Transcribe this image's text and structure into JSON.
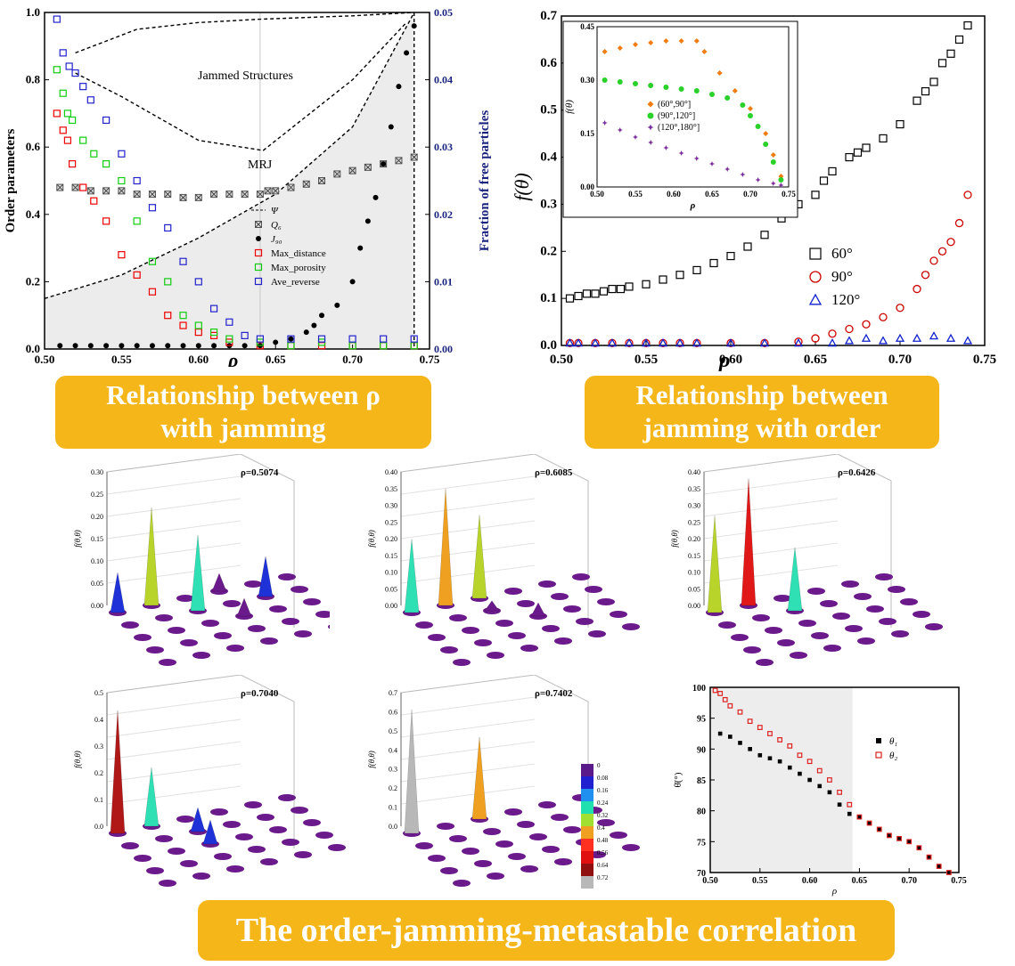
{
  "banners": {
    "top_left_line1": "Relationship  between ρ",
    "top_left_line2": "with jamming",
    "top_right_line1": "Relationship  between",
    "top_right_line2": "jamming with order",
    "bottom": "The order-jamming-metastable correlation"
  },
  "chart_data": [
    {
      "id": "order-parameters",
      "type": "scatter",
      "xlabel": "ρ",
      "ylabel": "Order parameters",
      "y2label": "Fraction of free particles",
      "xlim": [
        0.5,
        0.75
      ],
      "ylim": [
        0,
        1.0
      ],
      "y2lim": [
        0,
        0.05
      ],
      "xticks": [
        "0.50",
        "0.55",
        "0.60",
        "0.65",
        "0.70",
        "0.75"
      ],
      "yticks": [
        "0.0",
        "0.2",
        "0.4",
        "0.6",
        "0.8",
        "1.0"
      ],
      "y2ticks": [
        "0.00",
        "0.01",
        "0.02",
        "0.03",
        "0.04",
        "0.05"
      ],
      "annotations": [
        "Jammed Structures",
        "MRJ"
      ],
      "mrj_x": 0.64,
      "legend": [
        "Ψ",
        "Q₆",
        "J₉₀",
        "Max_distance",
        "Max_porosity",
        "Ave_reverse"
      ],
      "psi_lower": {
        "x": [
          0.5,
          0.55,
          0.6,
          0.65,
          0.7,
          0.74
        ],
        "y": [
          0.15,
          0.22,
          0.33,
          0.46,
          0.66,
          1.0
        ]
      },
      "psi_upper": {
        "x": [
          0.52,
          0.56,
          0.6,
          0.64,
          0.7,
          0.74
        ],
        "y": [
          0.88,
          0.95,
          0.97,
          0.98,
          0.99,
          1.0
        ]
      },
      "psi_inner": {
        "x": [
          0.52,
          0.55,
          0.6,
          0.642,
          0.7,
          0.735
        ],
        "y": [
          0.82,
          0.75,
          0.62,
          0.59,
          0.8,
          0.97
        ]
      },
      "series": [
        {
          "name": "Q₆",
          "axis": "left",
          "x": [
            0.51,
            0.52,
            0.53,
            0.54,
            0.55,
            0.56,
            0.57,
            0.58,
            0.59,
            0.6,
            0.61,
            0.62,
            0.63,
            0.64,
            0.645,
            0.65,
            0.66,
            0.67,
            0.68,
            0.69,
            0.7,
            0.71,
            0.72,
            0.73,
            0.74
          ],
          "y": [
            0.48,
            0.48,
            0.47,
            0.47,
            0.47,
            0.46,
            0.46,
            0.46,
            0.45,
            0.45,
            0.46,
            0.46,
            0.46,
            0.46,
            0.47,
            0.47,
            0.48,
            0.49,
            0.5,
            0.52,
            0.53,
            0.54,
            0.55,
            0.56,
            0.57
          ]
        },
        {
          "name": "J₉₀",
          "axis": "left",
          "x": [
            0.51,
            0.52,
            0.53,
            0.54,
            0.55,
            0.56,
            0.57,
            0.58,
            0.59,
            0.6,
            0.61,
            0.62,
            0.63,
            0.64,
            0.65,
            0.66,
            0.67,
            0.675,
            0.68,
            0.69,
            0.7,
            0.705,
            0.71,
            0.715,
            0.72,
            0.725,
            0.73,
            0.735,
            0.74
          ],
          "y": [
            0.01,
            0.01,
            0.01,
            0.01,
            0.01,
            0.01,
            0.01,
            0.01,
            0.01,
            0.01,
            0.01,
            0.01,
            0.01,
            0.01,
            0.02,
            0.03,
            0.05,
            0.07,
            0.1,
            0.13,
            0.2,
            0.3,
            0.38,
            0.45,
            0.55,
            0.66,
            0.78,
            0.88,
            0.96
          ]
        },
        {
          "name": "Max_distance",
          "axis": "left",
          "x": [
            0.508,
            0.512,
            0.515,
            0.518,
            0.525,
            0.532,
            0.54,
            0.55,
            0.56,
            0.57,
            0.58,
            0.59,
            0.6,
            0.61,
            0.62,
            0.64,
            0.66,
            0.68,
            0.7,
            0.72,
            0.74
          ],
          "y": [
            0.7,
            0.65,
            0.62,
            0.55,
            0.48,
            0.44,
            0.38,
            0.28,
            0.22,
            0.17,
            0.1,
            0.07,
            0.05,
            0.04,
            0.02,
            0.01,
            0.01,
            0.01,
            0.01,
            0.01,
            0.01
          ]
        },
        {
          "name": "Max_porosity",
          "axis": "left",
          "x": [
            0.508,
            0.512,
            0.515,
            0.518,
            0.525,
            0.532,
            0.54,
            0.55,
            0.56,
            0.57,
            0.58,
            0.59,
            0.6,
            0.61,
            0.62,
            0.64,
            0.66,
            0.68,
            0.7,
            0.72,
            0.74
          ],
          "y": [
            0.83,
            0.76,
            0.7,
            0.68,
            0.62,
            0.58,
            0.55,
            0.5,
            0.38,
            0.26,
            0.2,
            0.1,
            0.07,
            0.05,
            0.03,
            0.02,
            0.01,
            0.02,
            0.01,
            0.01,
            0.01
          ]
        },
        {
          "name": "Ave_reverse",
          "axis": "right",
          "x": [
            0.508,
            0.512,
            0.516,
            0.52,
            0.525,
            0.53,
            0.54,
            0.55,
            0.56,
            0.57,
            0.58,
            0.59,
            0.6,
            0.61,
            0.62,
            0.63,
            0.64,
            0.66,
            0.68,
            0.7,
            0.72,
            0.74
          ],
          "y": [
            0.049,
            0.044,
            0.042,
            0.041,
            0.039,
            0.037,
            0.034,
            0.029,
            0.025,
            0.021,
            0.018,
            0.013,
            0.01,
            0.006,
            0.004,
            0.002,
            0.0015,
            0.0015,
            0.0015,
            0.0015,
            0.0015,
            0.0015
          ]
        }
      ]
    },
    {
      "id": "f-theta",
      "type": "scatter",
      "xlabel": "ρ",
      "ylabel": "f(θ)",
      "xlim": [
        0.5,
        0.75
      ],
      "ylim": [
        0,
        0.7
      ],
      "xticks": [
        "0.50",
        "0.55",
        "0.60",
        "0.65",
        "0.70",
        "0.75"
      ],
      "yticks": [
        "0.0",
        "0.1",
        "0.2",
        "0.3",
        "0.4",
        "0.5",
        "0.6",
        "0.7"
      ],
      "series": [
        {
          "name": "60°",
          "x": [
            0.505,
            0.51,
            0.515,
            0.52,
            0.525,
            0.53,
            0.535,
            0.54,
            0.55,
            0.56,
            0.57,
            0.58,
            0.59,
            0.6,
            0.61,
            0.62,
            0.63,
            0.64,
            0.65,
            0.655,
            0.66,
            0.67,
            0.675,
            0.68,
            0.69,
            0.7,
            0.71,
            0.715,
            0.72,
            0.725,
            0.73,
            0.735,
            0.74
          ],
          "y": [
            0.1,
            0.105,
            0.11,
            0.11,
            0.115,
            0.12,
            0.12,
            0.125,
            0.13,
            0.14,
            0.15,
            0.16,
            0.175,
            0.19,
            0.21,
            0.235,
            0.27,
            0.3,
            0.32,
            0.35,
            0.37,
            0.4,
            0.41,
            0.42,
            0.44,
            0.47,
            0.52,
            0.54,
            0.56,
            0.6,
            0.62,
            0.65,
            0.68
          ]
        },
        {
          "name": "90°",
          "x": [
            0.505,
            0.51,
            0.52,
            0.53,
            0.54,
            0.55,
            0.56,
            0.57,
            0.58,
            0.6,
            0.62,
            0.64,
            0.65,
            0.66,
            0.67,
            0.68,
            0.69,
            0.7,
            0.71,
            0.715,
            0.72,
            0.725,
            0.73,
            0.735,
            0.74
          ],
          "y": [
            0.005,
            0.005,
            0.005,
            0.005,
            0.005,
            0.005,
            0.005,
            0.005,
            0.005,
            0.005,
            0.005,
            0.008,
            0.015,
            0.025,
            0.035,
            0.045,
            0.06,
            0.08,
            0.12,
            0.15,
            0.18,
            0.2,
            0.22,
            0.26,
            0.32
          ]
        },
        {
          "name": "120°",
          "x": [
            0.505,
            0.51,
            0.52,
            0.53,
            0.54,
            0.55,
            0.56,
            0.57,
            0.58,
            0.6,
            0.62,
            0.64,
            0.66,
            0.67,
            0.68,
            0.69,
            0.7,
            0.71,
            0.72,
            0.73,
            0.74
          ],
          "y": [
            0.005,
            0.005,
            0.005,
            0.005,
            0.005,
            0.005,
            0.005,
            0.005,
            0.005,
            0.005,
            0.005,
            0.005,
            0.005,
            0.01,
            0.015,
            0.01,
            0.015,
            0.015,
            0.02,
            0.015,
            0.01
          ]
        }
      ],
      "inset": {
        "xlabel": "ρ",
        "ylabel": "f(θ)",
        "xlim": [
          0.5,
          0.75
        ],
        "ylim": [
          0,
          0.45
        ],
        "xticks": [
          "0.50",
          "0.55",
          "0.60",
          "0.65",
          "0.70",
          "0.75"
        ],
        "yticks": [
          "0.00",
          "0.15",
          "0.30",
          "0.45"
        ],
        "series": [
          {
            "name": "(60°,90°]",
            "x": [
              0.51,
              0.53,
              0.55,
              0.57,
              0.59,
              0.61,
              0.63,
              0.64,
              0.66,
              0.68,
              0.7,
              0.72,
              0.73,
              0.74
            ],
            "y": [
              0.38,
              0.39,
              0.4,
              0.405,
              0.41,
              0.41,
              0.41,
              0.38,
              0.32,
              0.27,
              0.22,
              0.15,
              0.09,
              0.03
            ]
          },
          {
            "name": "(90°,120°]",
            "x": [
              0.51,
              0.53,
              0.55,
              0.57,
              0.59,
              0.61,
              0.63,
              0.65,
              0.67,
              0.69,
              0.7,
              0.71,
              0.72,
              0.73,
              0.74
            ],
            "y": [
              0.3,
              0.295,
              0.29,
              0.285,
              0.28,
              0.275,
              0.27,
              0.26,
              0.25,
              0.23,
              0.2,
              0.17,
              0.12,
              0.07,
              0.02
            ]
          },
          {
            "name": "(120°,180°]",
            "x": [
              0.51,
              0.53,
              0.55,
              0.57,
              0.59,
              0.61,
              0.63,
              0.65,
              0.67,
              0.69,
              0.71,
              0.73,
              0.74
            ],
            "y": [
              0.18,
              0.16,
              0.14,
              0.125,
              0.11,
              0.095,
              0.08,
              0.065,
              0.05,
              0.035,
              0.02,
              0.01,
              0.005
            ]
          }
        ]
      }
    },
    {
      "id": "mean-angle",
      "type": "scatter",
      "xlabel": "ρ",
      "ylabel": "θ̄(°)",
      "xlim": [
        0.5,
        0.75
      ],
      "ylim": [
        70,
        100
      ],
      "xticks": [
        "0.50",
        "0.55",
        "0.60",
        "0.65",
        "0.70",
        "0.75"
      ],
      "yticks": [
        "70",
        "75",
        "80",
        "85",
        "90",
        "95",
        "100"
      ],
      "series": [
        {
          "name": "θ₁",
          "x": [
            0.51,
            0.52,
            0.53,
            0.54,
            0.55,
            0.56,
            0.57,
            0.58,
            0.59,
            0.6,
            0.61,
            0.62,
            0.63,
            0.64,
            0.65,
            0.66,
            0.67,
            0.68,
            0.69,
            0.7,
            0.71,
            0.72,
            0.73,
            0.74
          ],
          "y": [
            92.5,
            92,
            91,
            90,
            89,
            88.5,
            88,
            87,
            86,
            85,
            84,
            83,
            81,
            79.5,
            79,
            78,
            77,
            76,
            75.5,
            75,
            74,
            72.5,
            71,
            70
          ]
        },
        {
          "name": "θ₂",
          "x": [
            0.505,
            0.51,
            0.515,
            0.52,
            0.53,
            0.54,
            0.55,
            0.56,
            0.57,
            0.58,
            0.59,
            0.6,
            0.61,
            0.62,
            0.63,
            0.64,
            0.65,
            0.66,
            0.67,
            0.68,
            0.69,
            0.7,
            0.71,
            0.72,
            0.73,
            0.74
          ],
          "y": [
            99.5,
            99,
            98,
            97,
            96,
            94.5,
            93.5,
            92.5,
            91.5,
            90.5,
            89,
            88,
            86.5,
            85,
            83,
            81,
            79,
            78,
            77,
            76,
            75.5,
            75,
            74,
            72.5,
            71,
            70
          ]
        }
      ]
    },
    {
      "id": "3d-distributions",
      "type": "bar",
      "zlabel": "f(θ,θ)",
      "colorbar_ticks": [
        "0",
        "0.08",
        "0.16",
        "0.24",
        "0.32",
        "0.4",
        "0.48",
        "0.56",
        "0.64",
        "0.72"
      ],
      "panels": [
        {
          "label": "ρ=0.5074",
          "zticks": [
            "0.00",
            "0.05",
            "0.10",
            "0.15",
            "0.20",
            "0.25",
            "0.30"
          ],
          "zmax": 0.3
        },
        {
          "label": "ρ=0.6085",
          "zticks": [
            "0.00",
            "0.05",
            "0.10",
            "0.15",
            "0.20",
            "0.25",
            "0.30",
            "0.35",
            "0.40"
          ],
          "zmax": 0.4
        },
        {
          "label": "ρ=0.6426",
          "zticks": [
            "0.00",
            "0.05",
            "0.10",
            "0.15",
            "0.20",
            "0.25",
            "0.30",
            "0.35",
            "0.40"
          ],
          "zmax": 0.4
        },
        {
          "label": "ρ=0.7040",
          "zticks": [
            "0.0",
            "0.1",
            "0.2",
            "0.3",
            "0.4",
            "0.5"
          ],
          "zmax": 0.5
        },
        {
          "label": "ρ=0.7402",
          "zticks": [
            "0.0",
            "0.1",
            "0.2",
            "0.3",
            "0.4",
            "0.5",
            "0.6",
            "0.7"
          ],
          "zmax": 0.7
        }
      ]
    }
  ]
}
